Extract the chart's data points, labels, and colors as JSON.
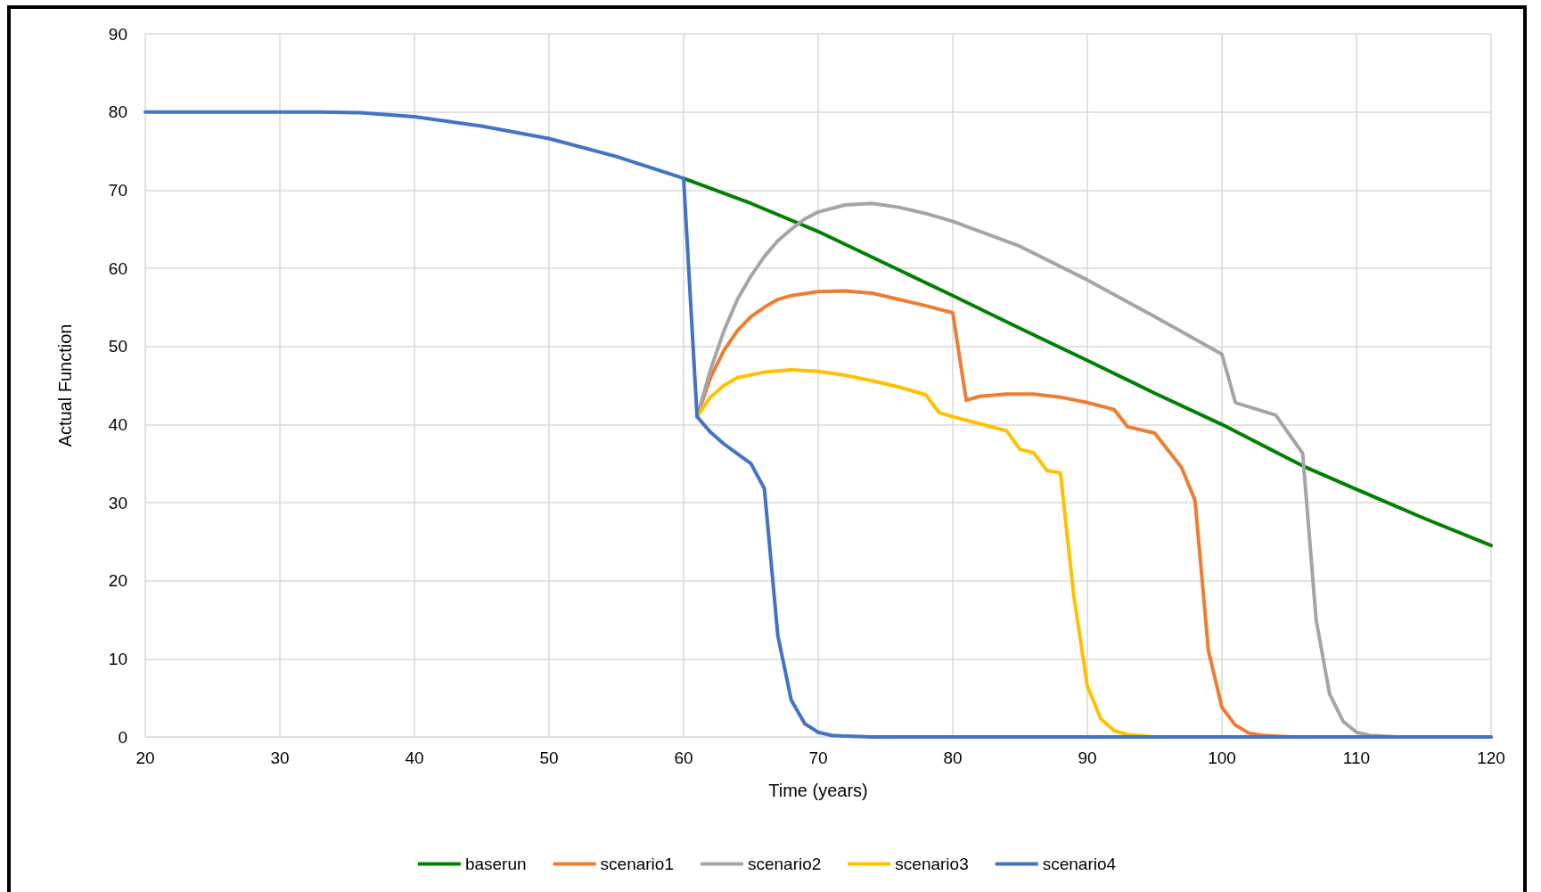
{
  "chart_data": {
    "type": "line",
    "xlabel": "Time (years)",
    "ylabel": "Actual Function",
    "xlim": [
      20,
      120
    ],
    "xticks": [
      20,
      30,
      40,
      50,
      60,
      70,
      80,
      90,
      100,
      110,
      120
    ],
    "ylim": [
      0,
      90
    ],
    "yticks": [
      0,
      10,
      20,
      30,
      40,
      50,
      60,
      70,
      80,
      90
    ],
    "grid": true,
    "legend": "bottom",
    "marker": "none",
    "line_style": "solid",
    "series": [
      {
        "name": "baserun",
        "color": "#008000",
        "x": [
          60,
          65,
          70,
          75,
          80,
          85,
          90,
          95,
          100,
          106,
          110,
          115,
          120
        ],
        "values": [
          71.5,
          68.3,
          64.7,
          60.6,
          56.5,
          52.3,
          48.2,
          44,
          40,
          34.7,
          31.7,
          28,
          24.5
        ]
      },
      {
        "name": "scenario1",
        "color": "#ed7d31",
        "x": [
          61,
          62,
          63,
          64,
          65,
          66,
          67,
          68,
          70,
          72,
          74,
          76,
          78,
          80,
          81,
          82,
          84,
          86,
          88,
          90,
          92,
          93,
          95,
          97,
          98,
          99,
          100,
          101,
          102,
          103,
          105,
          120
        ],
        "values": [
          41,
          46,
          49.5,
          52,
          53.8,
          55,
          56,
          56.5,
          57,
          57.1,
          56.8,
          56,
          55.2,
          54.3,
          43.1,
          43.6,
          43.9,
          43.9,
          43.5,
          42.8,
          41.9,
          39.7,
          38.9,
          34.5,
          30.3,
          11,
          3.8,
          1.5,
          0.5,
          0.2,
          0,
          0
        ]
      },
      {
        "name": "scenario2",
        "color": "#a5a5a5",
        "x": [
          61,
          62,
          63,
          64,
          65,
          66,
          67,
          68,
          69,
          70,
          72,
          74,
          76,
          78,
          80,
          85,
          90,
          95,
          100,
          101,
          104,
          106,
          107,
          108,
          109,
          110,
          111,
          113,
          120
        ],
        "values": [
          41,
          47,
          52,
          56,
          59,
          61.5,
          63.5,
          65,
          66.3,
          67.2,
          68.1,
          68.3,
          67.8,
          67,
          66,
          62.8,
          58.5,
          53.8,
          49,
          42.8,
          41.2,
          36.3,
          15,
          5.5,
          2,
          0.6,
          0.2,
          0,
          0
        ]
      },
      {
        "name": "scenario3",
        "color": "#ffc000",
        "x": [
          61,
          62,
          63,
          64,
          66,
          68,
          70,
          72,
          74,
          76,
          78,
          79,
          80,
          82,
          84,
          85,
          86,
          87,
          88,
          89,
          90,
          91,
          92,
          93,
          95,
          120
        ],
        "values": [
          41,
          43.5,
          45,
          46,
          46.7,
          47,
          46.8,
          46.3,
          45.6,
          44.8,
          43.8,
          41.5,
          41,
          40.1,
          39.2,
          36.8,
          36.4,
          34.1,
          33.8,
          18,
          6.5,
          2.3,
          0.8,
          0.3,
          0,
          0
        ]
      },
      {
        "name": "scenario4",
        "color": "#4472c4",
        "x": [
          20,
          25,
          30,
          33,
          36,
          40,
          45,
          50,
          55,
          60,
          61,
          62,
          63,
          65,
          66,
          67,
          68,
          69,
          70,
          71,
          72,
          74,
          120
        ],
        "values": [
          80,
          80,
          80,
          80,
          79.9,
          79.4,
          78.2,
          76.6,
          74.3,
          71.5,
          41,
          39,
          37.5,
          35,
          31.8,
          13,
          4.7,
          1.7,
          0.6,
          0.2,
          0.1,
          0,
          0
        ]
      }
    ]
  }
}
